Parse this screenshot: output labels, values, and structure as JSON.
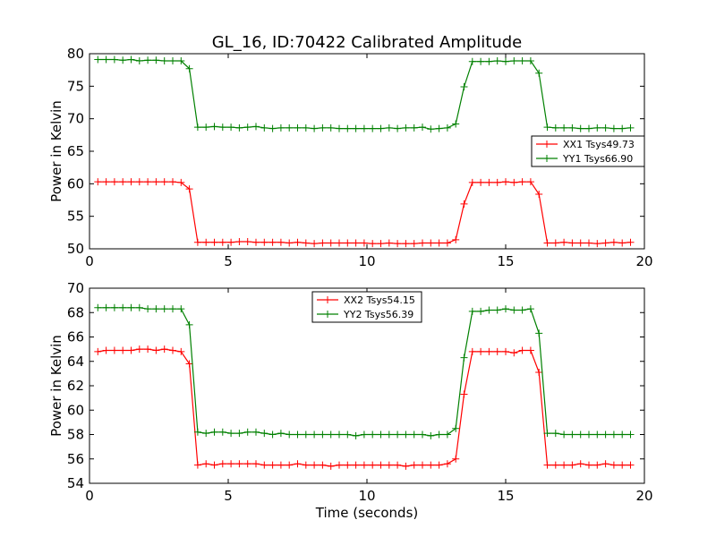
{
  "figure": {
    "title": "GL_16, ID:70422 Calibrated Amplitude",
    "xlabel": "Time (seconds)"
  },
  "chart_data": [
    {
      "type": "line",
      "title": "GL_16, ID:70422 Calibrated Amplitude",
      "xlabel": "",
      "ylabel": "Power in Kelvin",
      "xlim": [
        0,
        20
      ],
      "ylim": [
        50,
        80
      ],
      "xticks": [
        0,
        5,
        10,
        15,
        20
      ],
      "yticks": [
        50,
        55,
        60,
        65,
        70,
        75,
        80
      ],
      "grid": false,
      "legend_position": "center-right",
      "marker": "+",
      "series": [
        {
          "name": "XX1 Tsys49.73",
          "color": "#ff0000",
          "x": [
            0.3,
            0.6,
            0.9,
            1.2,
            1.5,
            1.8,
            2.1,
            2.4,
            2.7,
            3.0,
            3.3,
            3.6,
            3.9,
            4.2,
            4.5,
            4.8,
            5.1,
            5.4,
            5.7,
            6.0,
            6.3,
            6.6,
            6.9,
            7.2,
            7.5,
            7.8,
            8.1,
            8.4,
            8.7,
            9.0,
            9.3,
            9.6,
            9.9,
            10.2,
            10.5,
            10.8,
            11.1,
            11.4,
            11.7,
            12.0,
            12.3,
            12.6,
            12.9,
            13.2,
            13.5,
            13.8,
            14.1,
            14.4,
            14.7,
            15.0,
            15.3,
            15.6,
            15.9,
            16.2,
            16.5,
            16.8,
            17.1,
            17.4,
            17.7,
            18.0,
            18.3,
            18.6,
            18.9,
            19.2,
            19.5
          ],
          "y": [
            60.3,
            60.3,
            60.3,
            60.3,
            60.3,
            60.3,
            60.3,
            60.3,
            60.3,
            60.3,
            60.2,
            59.2,
            51.0,
            51.0,
            51.0,
            51.0,
            51.0,
            51.1,
            51.1,
            51.0,
            51.0,
            51.0,
            51.0,
            50.9,
            51.0,
            50.9,
            50.8,
            50.9,
            50.9,
            50.9,
            50.9,
            50.9,
            50.9,
            50.8,
            50.8,
            50.9,
            50.8,
            50.8,
            50.8,
            50.9,
            50.9,
            50.9,
            50.9,
            51.4,
            56.9,
            60.2,
            60.2,
            60.2,
            60.2,
            60.3,
            60.2,
            60.3,
            60.3,
            58.4,
            50.9,
            50.9,
            51.0,
            50.9,
            50.9,
            50.9,
            50.8,
            50.9,
            51.0,
            50.9,
            51.0
          ]
        },
        {
          "name": "YY1 Tsys66.90",
          "color": "#008000",
          "x": [
            0.3,
            0.6,
            0.9,
            1.2,
            1.5,
            1.8,
            2.1,
            2.4,
            2.7,
            3.0,
            3.3,
            3.6,
            3.9,
            4.2,
            4.5,
            4.8,
            5.1,
            5.4,
            5.7,
            6.0,
            6.3,
            6.6,
            6.9,
            7.2,
            7.5,
            7.8,
            8.1,
            8.4,
            8.7,
            9.0,
            9.3,
            9.6,
            9.9,
            10.2,
            10.5,
            10.8,
            11.1,
            11.4,
            11.7,
            12.0,
            12.3,
            12.6,
            12.9,
            13.2,
            13.5,
            13.8,
            14.1,
            14.4,
            14.7,
            15.0,
            15.3,
            15.6,
            15.9,
            16.2,
            16.5,
            16.8,
            17.1,
            17.4,
            17.7,
            18.0,
            18.3,
            18.6,
            18.9,
            19.2,
            19.5
          ],
          "y": [
            79.1,
            79.1,
            79.1,
            79.0,
            79.1,
            78.9,
            79.0,
            79.0,
            78.9,
            78.9,
            78.9,
            77.7,
            68.7,
            68.7,
            68.8,
            68.7,
            68.7,
            68.6,
            68.7,
            68.8,
            68.6,
            68.5,
            68.6,
            68.6,
            68.6,
            68.6,
            68.5,
            68.6,
            68.6,
            68.5,
            68.5,
            68.5,
            68.5,
            68.5,
            68.5,
            68.6,
            68.5,
            68.6,
            68.6,
            68.7,
            68.4,
            68.5,
            68.6,
            69.2,
            74.9,
            78.8,
            78.8,
            78.8,
            78.9,
            78.8,
            78.9,
            78.9,
            78.9,
            77.0,
            68.7,
            68.6,
            68.6,
            68.6,
            68.5,
            68.5,
            68.6,
            68.6,
            68.5,
            68.5,
            68.6
          ]
        }
      ]
    },
    {
      "type": "line",
      "title": "",
      "xlabel": "Time (seconds)",
      "ylabel": "Power in Kelvin",
      "xlim": [
        0,
        20
      ],
      "ylim": [
        54,
        70
      ],
      "xticks": [
        0,
        5,
        10,
        15,
        20
      ],
      "yticks": [
        54,
        56,
        58,
        60,
        62,
        64,
        66,
        68,
        70
      ],
      "grid": false,
      "legend_position": "top-center",
      "marker": "+",
      "series": [
        {
          "name": "XX2 Tsys54.15",
          "color": "#ff0000",
          "x": [
            0.3,
            0.6,
            0.9,
            1.2,
            1.5,
            1.8,
            2.1,
            2.4,
            2.7,
            3.0,
            3.3,
            3.6,
            3.9,
            4.2,
            4.5,
            4.8,
            5.1,
            5.4,
            5.7,
            6.0,
            6.3,
            6.6,
            6.9,
            7.2,
            7.5,
            7.8,
            8.1,
            8.4,
            8.7,
            9.0,
            9.3,
            9.6,
            9.9,
            10.2,
            10.5,
            10.8,
            11.1,
            11.4,
            11.7,
            12.0,
            12.3,
            12.6,
            12.9,
            13.2,
            13.5,
            13.8,
            14.1,
            14.4,
            14.7,
            15.0,
            15.3,
            15.6,
            15.9,
            16.2,
            16.5,
            16.8,
            17.1,
            17.4,
            17.7,
            18.0,
            18.3,
            18.6,
            18.9,
            19.2,
            19.5
          ],
          "y": [
            64.8,
            64.9,
            64.9,
            64.9,
            64.9,
            65.0,
            65.0,
            64.9,
            65.0,
            64.9,
            64.8,
            63.8,
            55.5,
            55.6,
            55.5,
            55.6,
            55.6,
            55.6,
            55.6,
            55.6,
            55.5,
            55.5,
            55.5,
            55.5,
            55.6,
            55.5,
            55.5,
            55.5,
            55.4,
            55.5,
            55.5,
            55.5,
            55.5,
            55.5,
            55.5,
            55.5,
            55.5,
            55.4,
            55.5,
            55.5,
            55.5,
            55.5,
            55.6,
            56.0,
            61.3,
            64.8,
            64.8,
            64.8,
            64.8,
            64.8,
            64.7,
            64.9,
            64.9,
            63.1,
            55.5,
            55.5,
            55.5,
            55.5,
            55.6,
            55.5,
            55.5,
            55.6,
            55.5,
            55.5,
            55.5
          ]
        },
        {
          "name": "YY2 Tsys56.39",
          "color": "#008000",
          "x": [
            0.3,
            0.6,
            0.9,
            1.2,
            1.5,
            1.8,
            2.1,
            2.4,
            2.7,
            3.0,
            3.3,
            3.6,
            3.9,
            4.2,
            4.5,
            4.8,
            5.1,
            5.4,
            5.7,
            6.0,
            6.3,
            6.6,
            6.9,
            7.2,
            7.5,
            7.8,
            8.1,
            8.4,
            8.7,
            9.0,
            9.3,
            9.6,
            9.9,
            10.2,
            10.5,
            10.8,
            11.1,
            11.4,
            11.7,
            12.0,
            12.3,
            12.6,
            12.9,
            13.2,
            13.5,
            13.8,
            14.1,
            14.4,
            14.7,
            15.0,
            15.3,
            15.6,
            15.9,
            16.2,
            16.5,
            16.8,
            17.1,
            17.4,
            17.7,
            18.0,
            18.3,
            18.6,
            18.9,
            19.2,
            19.5
          ],
          "y": [
            68.4,
            68.4,
            68.4,
            68.4,
            68.4,
            68.4,
            68.3,
            68.3,
            68.3,
            68.3,
            68.3,
            67.0,
            58.2,
            58.1,
            58.2,
            58.2,
            58.1,
            58.1,
            58.2,
            58.2,
            58.1,
            58.0,
            58.1,
            58.0,
            58.0,
            58.0,
            58.0,
            58.0,
            58.0,
            58.0,
            58.0,
            57.9,
            58.0,
            58.0,
            58.0,
            58.0,
            58.0,
            58.0,
            58.0,
            58.0,
            57.9,
            58.0,
            58.0,
            58.5,
            64.3,
            68.1,
            68.1,
            68.2,
            68.2,
            68.3,
            68.2,
            68.2,
            68.3,
            66.3,
            58.1,
            58.1,
            58.0,
            58.0,
            58.0,
            58.0,
            58.0,
            58.0,
            58.0,
            58.0,
            58.0
          ]
        }
      ]
    }
  ]
}
